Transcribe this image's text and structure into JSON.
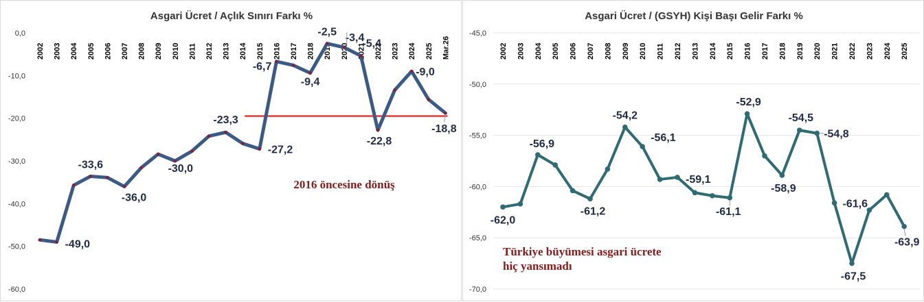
{
  "chart_data": [
    {
      "type": "line",
      "title": "Asgari Ücret / Açlık Sınırı Farkı %",
      "categories": [
        "2002",
        "2003",
        "2004",
        "2005",
        "2006",
        "2007",
        "2008",
        "2009",
        "2010",
        "2011",
        "2012",
        "2013",
        "2014",
        "2015",
        "2016",
        "2017",
        "2018",
        "2019",
        "2020",
        "2021",
        "2022",
        "2023",
        "2024",
        "2025",
        "Mar.26"
      ],
      "series": [
        {
          "values": [
            -48.5,
            -49.0,
            -35.7,
            -33.6,
            -33.9,
            -36.0,
            -31.6,
            -28.4,
            -30.0,
            -27.7,
            -24.2,
            -23.3,
            -25.9,
            -27.2,
            -6.7,
            -7.6,
            -9.4,
            -2.5,
            -3.4,
            -5.4,
            -22.8,
            -13.4,
            -9.0,
            -15.6,
            -18.8
          ],
          "color": "#3b5a86"
        }
      ],
      "data_labels": [
        {
          "index": 1,
          "text": "-49,0"
        },
        {
          "index": 3,
          "text": "-33,6"
        },
        {
          "index": 5,
          "text": "-36,0"
        },
        {
          "index": 8,
          "text": "-30,0"
        },
        {
          "index": 11,
          "text": "-23,3"
        },
        {
          "index": 13,
          "text": "-27,2"
        },
        {
          "index": 14,
          "text": "-6,7"
        },
        {
          "index": 16,
          "text": "-9,4"
        },
        {
          "index": 17,
          "text": "-2,5"
        },
        {
          "index": 18,
          "text": "-3,4"
        },
        {
          "index": 19,
          "text": "-5,4"
        },
        {
          "index": 20,
          "text": "-22,8"
        },
        {
          "index": 22,
          "text": "-9,0"
        },
        {
          "index": 24,
          "text": "-18,8"
        }
      ],
      "yticks": [
        "0,0",
        "-10,0",
        "-20,0",
        "-30,0",
        "-40,0",
        "-50,0",
        "-60,0"
      ],
      "ylim": [
        -60,
        0
      ],
      "reference_line": {
        "value": -19.5,
        "from_index": 12,
        "to_index": 24,
        "color": "#e53935"
      },
      "annotation": "2016 öncesine dönüş",
      "grid": false
    },
    {
      "type": "line",
      "title": "Asgari Ücret / (GSYH) Kişi Başı Gelir Farkı %",
      "categories": [
        "2002",
        "2003",
        "2004",
        "2005",
        "2006",
        "2007",
        "2008",
        "2009",
        "2010",
        "2011",
        "2012",
        "2013",
        "2014",
        "2015",
        "2016",
        "2017",
        "2018",
        "2019",
        "2020",
        "2021",
        "2022",
        "2023",
        "2024",
        "2025"
      ],
      "series": [
        {
          "values": [
            -62.0,
            -61.7,
            -56.9,
            -57.9,
            -60.4,
            -61.2,
            -58.3,
            -54.2,
            -56.1,
            -59.3,
            -59.1,
            -60.6,
            -60.9,
            -61.1,
            -52.9,
            -57.0,
            -58.9,
            -54.5,
            -54.8,
            -61.6,
            -67.5,
            -62.3,
            -60.8,
            -63.9
          ],
          "color": "#2e6b73"
        }
      ],
      "data_labels": [
        {
          "index": 0,
          "text": "-62,0"
        },
        {
          "index": 2,
          "text": "-56,9"
        },
        {
          "index": 5,
          "text": "-61,2"
        },
        {
          "index": 7,
          "text": "-54,2"
        },
        {
          "index": 8,
          "text": "-56,1"
        },
        {
          "index": 10,
          "text": "-59,1"
        },
        {
          "index": 13,
          "text": "-61,1"
        },
        {
          "index": 14,
          "text": "-52,9"
        },
        {
          "index": 16,
          "text": "-58,9"
        },
        {
          "index": 17,
          "text": "-54,5"
        },
        {
          "index": 18,
          "text": "-54,8"
        },
        {
          "index": 19,
          "text": "-61,6"
        },
        {
          "index": 20,
          "text": "-67,5"
        },
        {
          "index": 23,
          "text": "-63,9"
        }
      ],
      "yticks": [
        "-45,0",
        "-50,0",
        "-55,0",
        "-60,0",
        "-65,0",
        "-70,0"
      ],
      "ylim": [
        -70,
        -45
      ],
      "annotation_lines": [
        "Türkiye büyümesi asgari ücrete",
        "hiç yansımadı"
      ],
      "grid": true
    }
  ]
}
